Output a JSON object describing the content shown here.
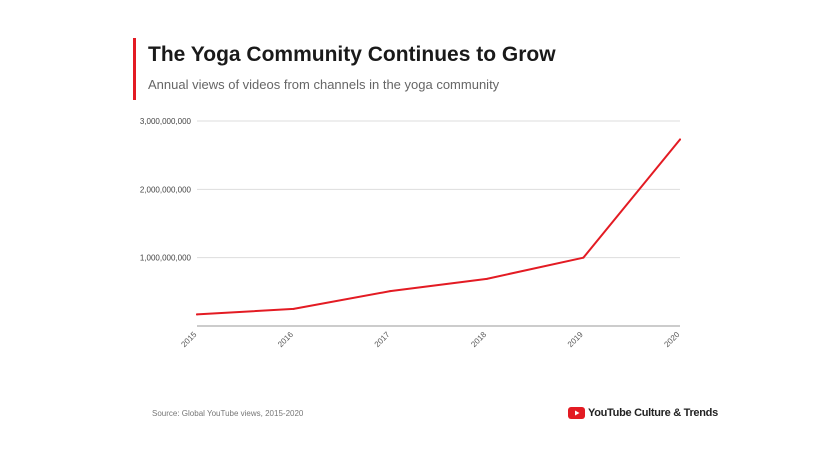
{
  "header": {
    "title": "The Yoga Community Continues to Grow",
    "subtitle": "Annual views of videos from channels in the yoga community"
  },
  "footer": {
    "source": "Source: Global YouTube views, 2015-2020",
    "brand": "YouTube Culture & Trends"
  },
  "colors": {
    "accent": "#e31b23",
    "line": "#e31b23",
    "grid": "#dddddd",
    "axis": "#999999"
  },
  "chart_data": {
    "type": "line",
    "title": "The Yoga Community Continues to Grow",
    "subtitle": "Annual views of videos from channels in the yoga community",
    "xlabel": "",
    "ylabel": "",
    "x": [
      "2015",
      "2016",
      "2017",
      "2018",
      "2019",
      "2020"
    ],
    "series": [
      {
        "values": [
          170000000,
          250000000,
          510000000,
          690000000,
          1000000000,
          2730000000
        ]
      }
    ],
    "ylim": [
      0,
      3000000000
    ],
    "yticks": [
      {
        "value": 1000000000,
        "label": "1,000,000,000"
      },
      {
        "value": 2000000000,
        "label": "2,000,000,000"
      },
      {
        "value": 3000000000,
        "label": "3,000,000,000"
      }
    ],
    "grid": true,
    "legend": "none"
  }
}
